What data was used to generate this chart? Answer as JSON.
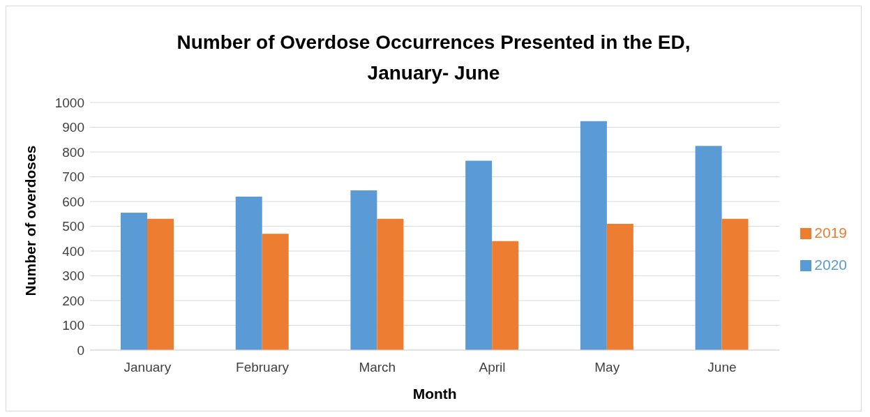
{
  "chart_data": {
    "type": "bar",
    "title": "Number of Overdose Occurrences Presented in the ED,\nJanuary- June",
    "xlabel": "Month",
    "ylabel": "Number of overdoses",
    "categories": [
      "January",
      "February",
      "March",
      "April",
      "May",
      "June"
    ],
    "series": [
      {
        "name": "2020",
        "color": "#5b9bd5",
        "values": [
          555,
          620,
          645,
          765,
          925,
          825
        ]
      },
      {
        "name": "2019",
        "color": "#ed7d31",
        "values": [
          530,
          470,
          530,
          440,
          510,
          530
        ]
      }
    ],
    "ylim": [
      0,
      1000
    ],
    "yticks": [
      0,
      100,
      200,
      300,
      400,
      500,
      600,
      700,
      800,
      900,
      1000
    ],
    "grid": "y",
    "legend": "right"
  }
}
